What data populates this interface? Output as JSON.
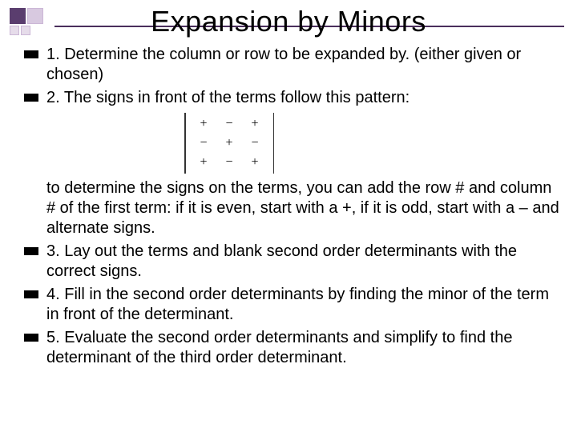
{
  "title": "Expansion by Minors",
  "colors": {
    "accent": "#5a3d6e",
    "rule": "#4a2e5c",
    "text": "#000000",
    "background": "#ffffff"
  },
  "typography": {
    "title_fontsize": 36,
    "body_fontsize": 20,
    "matrix_fontsize": 16,
    "font_family": "Arial"
  },
  "bullets": {
    "item1": "1. Determine the column or row to be expanded by. (either given or chosen)",
    "item2": "2. The signs in front of the terms follow this pattern:",
    "continuation": "to determine the signs on the terms, you can add the row # and column # of the first term: if it is even, start with a +, if it is odd, start with a – and alternate signs.",
    "item3": "3. Lay out the terms and blank second order determinants with the correct signs.",
    "item4": "4. Fill in the second order determinants by finding the minor of the term in front of the determinant.",
    "item5": "5. Evaluate the second order determinants and simplify to find the determinant of the third order determinant."
  },
  "sign_matrix": {
    "type": "table",
    "rows": 3,
    "cols": 3,
    "r0c0": "+",
    "r0c1": "−",
    "r0c2": "+",
    "r1c0": "−",
    "r1c1": "+",
    "r1c2": "−",
    "r2c0": "+",
    "r2c1": "−",
    "r2c2": "+",
    "bracket_color": "#333333"
  }
}
